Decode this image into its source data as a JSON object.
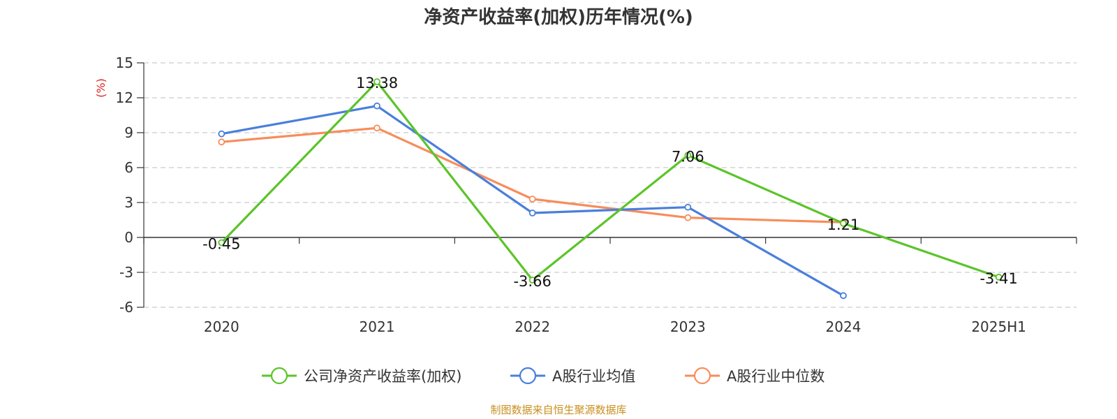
{
  "chart_data": {
    "type": "line",
    "title": "净资产收益率(加权)历年情况(%)",
    "ylabel": "(%)",
    "xlabel": "",
    "categories": [
      "2020",
      "2021",
      "2022",
      "2023",
      "2024",
      "2025H1"
    ],
    "ylim": [
      -6,
      15
    ],
    "yticks": [
      "15",
      "12",
      "9",
      "6",
      "3",
      "0",
      "-3",
      "-6"
    ],
    "grid": true,
    "legend_position": "bottom",
    "series": [
      {
        "name": "公司净资产收益率(加权)",
        "color": "#5bc42a",
        "values": [
          -0.45,
          13.38,
          -3.66,
          7.06,
          1.21,
          -3.41
        ],
        "labels": [
          "-0.45",
          "13.38",
          "-3.66",
          "7.06",
          "1.21",
          "-3.41"
        ]
      },
      {
        "name": "A股行业均值",
        "color": "#4a7fdb",
        "values": [
          8.9,
          11.3,
          2.1,
          2.6,
          -5.0,
          null
        ]
      },
      {
        "name": "A股行业中位数",
        "color": "#f78d5c",
        "values": [
          8.2,
          9.4,
          3.3,
          1.7,
          1.3,
          null
        ]
      }
    ],
    "source": "制图数据来自恒生聚源数据库"
  }
}
